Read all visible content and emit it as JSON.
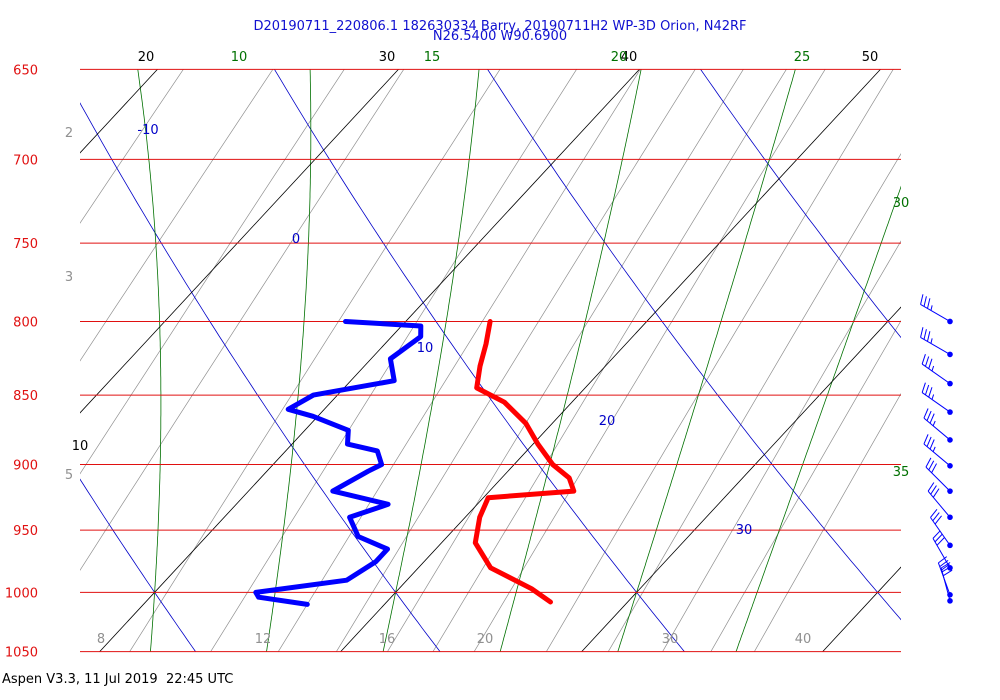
{
  "header": {
    "line1": "D20190711_220806.1 182630334 Barry, 20190711H2 WP-3D Orion, N42RF",
    "line2": "N26.5400 W90.6900"
  },
  "footer": {
    "text": "Aspen V3.3, 11 Jul 2019  22:45 UTC"
  },
  "colors": {
    "isobar": "#e01010",
    "isotherm": "#000000",
    "dry_adiabat": "#0000c8",
    "moist_adiabat": "#007000",
    "mixing_ratio": "#909090",
    "temperature": "#ff0000",
    "dewpoint": "#0000ff",
    "wind": "#0000ff"
  },
  "chart_data": {
    "type": "skew-t",
    "pressure_levels": [
      650,
      700,
      750,
      800,
      850,
      900,
      950,
      1000,
      1050
    ],
    "pressure_range": [
      650,
      1050
    ],
    "isotherm_labels": [
      "20",
      "30",
      "40",
      "50",
      "10"
    ],
    "moist_adiabat_labels": [
      "10",
      "15",
      "20",
      "25",
      "30",
      "35"
    ],
    "dry_adiabat_labels": [
      "-10",
      "0",
      "10",
      "20",
      "30"
    ],
    "mixing_ratio_labels_left": [
      "2",
      "3",
      "5"
    ],
    "mixing_ratio_labels_bottom": [
      "8",
      "12",
      "16",
      "20",
      "30",
      "40"
    ],
    "temperature_profile": [
      {
        "p": 800,
        "t": 13.5
      },
      {
        "p": 815,
        "t": 14.2
      },
      {
        "p": 830,
        "t": 14.8
      },
      {
        "p": 845,
        "t": 15.5
      },
      {
        "p": 855,
        "t": 17.2
      },
      {
        "p": 870,
        "t": 18.9
      },
      {
        "p": 885,
        "t": 20.2
      },
      {
        "p": 900,
        "t": 21.6
      },
      {
        "p": 910,
        "t": 22.8
      },
      {
        "p": 920,
        "t": 23.5
      },
      {
        "p": 925,
        "t": 20.2
      },
      {
        "p": 940,
        "t": 20.6
      },
      {
        "p": 960,
        "t": 21.4
      },
      {
        "p": 980,
        "t": 23.0
      },
      {
        "p": 997,
        "t": 25.5
      },
      {
        "p": 1008,
        "t": 26.8
      }
    ],
    "dewpoint_profile": [
      {
        "p": 800,
        "t": 7.5
      },
      {
        "p": 803,
        "t": 10.8
      },
      {
        "p": 810,
        "t": 11.2
      },
      {
        "p": 825,
        "t": 10.8
      },
      {
        "p": 840,
        "t": 11.8
      },
      {
        "p": 850,
        "t": 9.0
      },
      {
        "p": 860,
        "t": 8.5
      },
      {
        "p": 865,
        "t": 9.8
      },
      {
        "p": 875,
        "t": 11.8
      },
      {
        "p": 885,
        "t": 12.3
      },
      {
        "p": 890,
        "t": 13.8
      },
      {
        "p": 900,
        "t": 14.5
      },
      {
        "p": 905,
        "t": 14.2
      },
      {
        "p": 920,
        "t": 13.5
      },
      {
        "p": 930,
        "t": 16.3
      },
      {
        "p": 940,
        "t": 15.2
      },
      {
        "p": 955,
        "t": 16.3
      },
      {
        "p": 965,
        "t": 18.0
      },
      {
        "p": 975,
        "t": 18.0
      },
      {
        "p": 990,
        "t": 17.5
      },
      {
        "p": 1000,
        "t": 14.2
      },
      {
        "p": 1004,
        "t": 14.5
      },
      {
        "p": 1010,
        "t": 16.8
      }
    ],
    "wind_barbs": [
      {
        "p": 800,
        "dir": 300,
        "spd": 35
      },
      {
        "p": 822,
        "dir": 300,
        "spd": 35
      },
      {
        "p": 842,
        "dir": 305,
        "spd": 35
      },
      {
        "p": 862,
        "dir": 305,
        "spd": 35
      },
      {
        "p": 882,
        "dir": 310,
        "spd": 35
      },
      {
        "p": 901,
        "dir": 310,
        "spd": 35
      },
      {
        "p": 920,
        "dir": 315,
        "spd": 30
      },
      {
        "p": 940,
        "dir": 320,
        "spd": 30
      },
      {
        "p": 962,
        "dir": 325,
        "spd": 30
      },
      {
        "p": 980,
        "dir": 330,
        "spd": 30
      },
      {
        "p": 1002,
        "dir": 340,
        "spd": 30
      },
      {
        "p": 1007,
        "dir": 345,
        "spd": 30
      }
    ]
  }
}
